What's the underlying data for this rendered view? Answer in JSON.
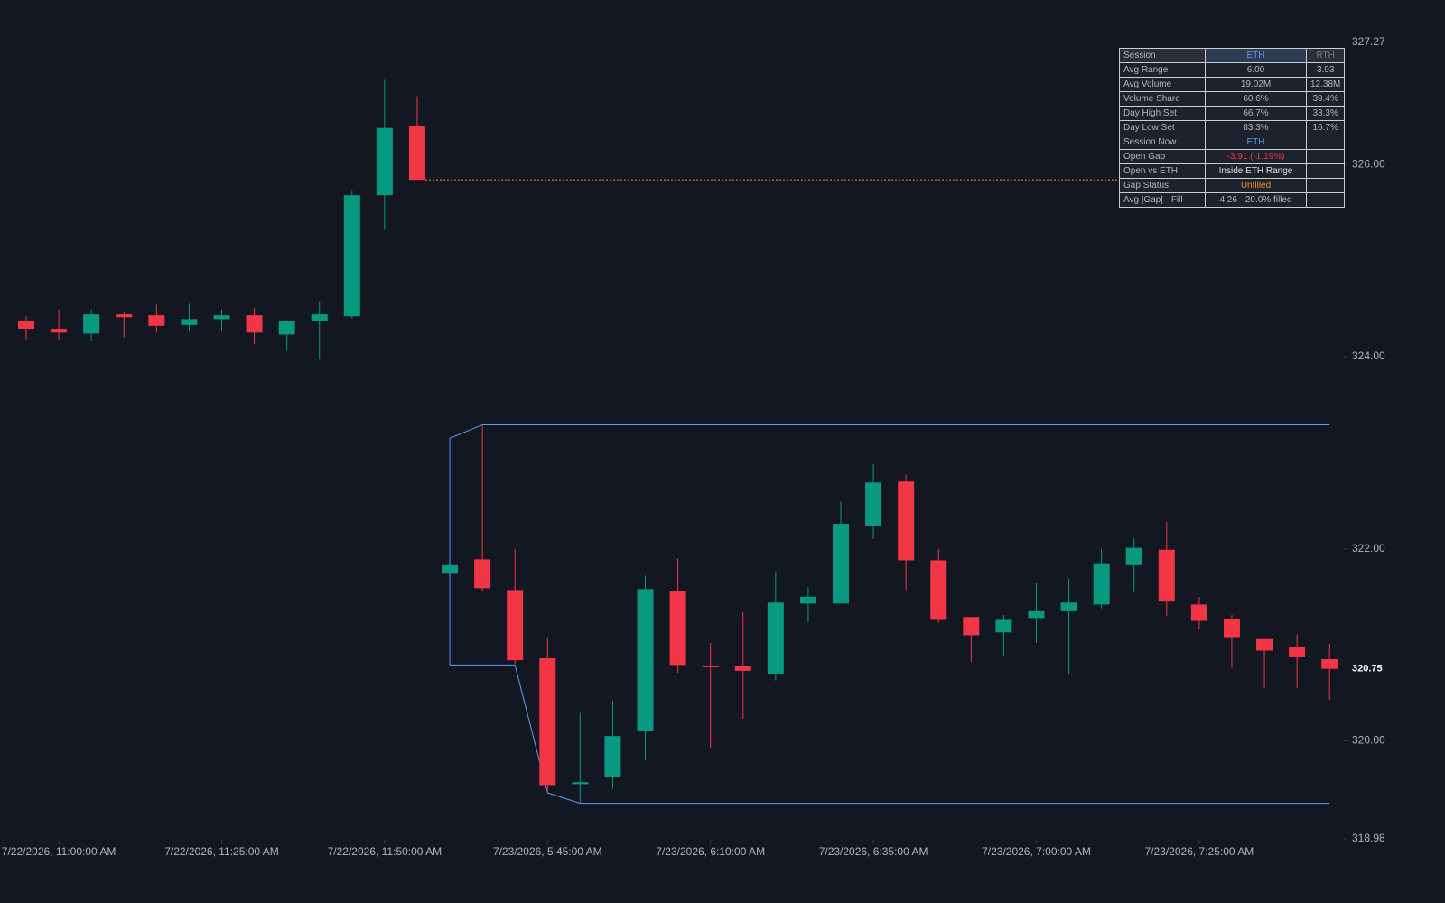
{
  "chart_data": {
    "type": "candlestick",
    "categories": [
      null,
      "7/22/2026, 11:00:00 AM",
      null,
      null,
      null,
      null,
      "7/22/2026, 11:25:00 AM",
      null,
      null,
      null,
      null,
      "7/22/2026, 11:50:00 AM",
      null,
      null,
      null,
      null,
      "7/23/2026, 5:45:00 AM",
      null,
      null,
      null,
      null,
      "7/23/2026, 6:10:00 AM",
      null,
      null,
      null,
      null,
      "7/23/2026, 6:35:00 AM",
      null,
      null,
      null,
      null,
      "7/23/2026, 7:00:00 AM",
      null,
      null,
      null,
      null,
      "7/23/2026, 7:25:00 AM",
      null,
      null,
      null,
      null
    ],
    "open": [
      324.37,
      324.29,
      324.24,
      324.44,
      324.43,
      324.33,
      324.39,
      324.43,
      324.23,
      324.37,
      324.42,
      325.68,
      326.4,
      321.74,
      321.89,
      321.57,
      320.86,
      319.55,
      319.62,
      320.1,
      321.56,
      320.78,
      320.78,
      320.7,
      321.43,
      321.43,
      322.24,
      322.7,
      321.88,
      321.29,
      321.13,
      321.28,
      321.35,
      321.42,
      321.83,
      321.99,
      321.42,
      321.27,
      321.06,
      320.98,
      320.85
    ],
    "high": [
      324.42,
      324.49,
      324.49,
      324.47,
      324.54,
      324.55,
      324.49,
      324.51,
      324.38,
      324.58,
      325.72,
      326.88,
      326.71,
      321.83,
      323.29,
      322.0,
      321.08,
      320.29,
      320.42,
      321.72,
      321.9,
      321.02,
      321.34,
      321.76,
      321.6,
      322.49,
      322.88,
      322.77,
      322.0,
      321.29,
      321.31,
      321.64,
      321.69,
      322.0,
      322.11,
      322.28,
      321.5,
      321.31,
      321.06,
      321.11,
      321.01
    ],
    "low": [
      324.18,
      324.18,
      324.16,
      324.2,
      324.25,
      324.26,
      324.26,
      324.13,
      324.06,
      323.97,
      324.4,
      325.32,
      325.84,
      321.74,
      321.56,
      320.8,
      319.46,
      319.35,
      319.5,
      319.8,
      320.71,
      319.93,
      320.23,
      320.63,
      321.23,
      321.43,
      322.1,
      321.57,
      321.23,
      320.82,
      320.89,
      321.02,
      320.7,
      321.38,
      321.55,
      321.3,
      321.16,
      320.76,
      320.55,
      320.55,
      320.43
    ],
    "close": [
      324.29,
      324.25,
      324.44,
      324.41,
      324.32,
      324.39,
      324.43,
      324.25,
      324.37,
      324.44,
      325.68,
      326.38,
      325.84,
      321.83,
      321.59,
      320.84,
      319.54,
      319.57,
      320.05,
      321.58,
      320.79,
      320.77,
      320.73,
      321.44,
      321.5,
      322.26,
      322.69,
      321.88,
      321.26,
      321.1,
      321.26,
      321.35,
      321.44,
      321.84,
      322.01,
      321.45,
      321.25,
      321.08,
      320.94,
      320.87,
      320.75
    ],
    "up_color": "#089981",
    "down_color": "#f23645",
    "range_high": [
      null,
      null,
      null,
      null,
      null,
      null,
      null,
      null,
      null,
      null,
      null,
      null,
      null,
      323.15,
      323.29,
      323.29,
      323.29,
      323.29,
      323.29,
      323.29,
      323.29,
      323.29,
      323.29,
      323.29,
      323.29,
      323.29,
      323.29,
      323.29,
      323.29,
      323.29,
      323.29,
      323.29,
      323.29,
      323.29,
      323.29,
      323.29,
      323.29,
      323.29,
      323.29,
      323.29,
      323.29
    ],
    "range_low": [
      null,
      null,
      null,
      null,
      null,
      null,
      null,
      null,
      null,
      null,
      null,
      null,
      null,
      320.79,
      320.79,
      320.79,
      319.46,
      319.35,
      319.35,
      319.35,
      319.35,
      319.35,
      319.35,
      319.35,
      319.35,
      319.35,
      319.35,
      319.35,
      319.35,
      319.35,
      319.35,
      319.35,
      319.35,
      319.35,
      319.35,
      319.35,
      319.35,
      319.35,
      319.35,
      319.35,
      319.35
    ],
    "range_color": "#5b9cf6",
    "prev_close": 325.84,
    "prev_close_color": "#f7931a",
    "last_price": 320.75,
    "ylim": [
      318.98,
      327.27
    ],
    "yticks": [
      318.98,
      {
        "value": 320,
        "label": "320.00"
      },
      {
        "value": 322,
        "label": "322.00"
      },
      {
        "value": 324,
        "label": "324.00"
      },
      {
        "value": 326,
        "label": "326.00"
      },
      327.27
    ]
  },
  "table": {
    "rows": [
      [
        "Session",
        "ETH",
        "RTH"
      ],
      [
        "Avg Range",
        "6.00",
        "3.93"
      ],
      [
        "Avg Volume",
        "19.02M",
        "12.38M"
      ],
      [
        "Volume Share",
        "60.6%",
        "39.4%"
      ],
      [
        "Day High Set",
        "66.7%",
        "33.3%"
      ],
      [
        "Day Low Set",
        "83.3%",
        "16.7%"
      ],
      [
        "Session Now",
        "ETH",
        ""
      ],
      [
        "Open Gap",
        "-3.91 (-1.19%)",
        ""
      ],
      [
        "Open vs ETH",
        "Inside ETH Range",
        ""
      ],
      [
        "Gap Status",
        "Unfilled",
        ""
      ],
      [
        "Avg |Gap| · Fill",
        "4.26 · 20.0% filled",
        ""
      ]
    ]
  }
}
